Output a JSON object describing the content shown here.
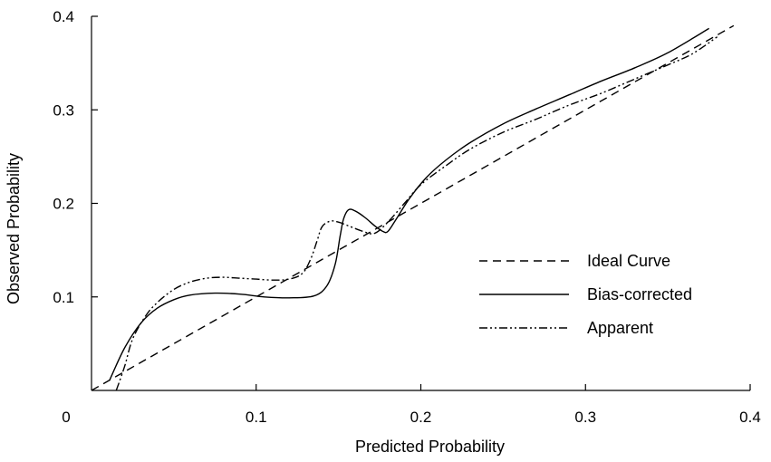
{
  "chart_data": {
    "type": "line",
    "title": "",
    "xlabel": "Predicted  Probability",
    "ylabel": "Observed  Probability",
    "xlim": [
      0,
      0.4
    ],
    "ylim": [
      0,
      0.4
    ],
    "x_ticks": [
      "0",
      "0.1",
      "0.2",
      "0.3",
      "0.4"
    ],
    "y_ticks": [
      "0.1",
      "0.2",
      "0.3",
      "0.4"
    ],
    "x_tick_values": [
      0,
      0.1,
      0.2,
      0.3,
      0.4
    ],
    "y_tick_values": [
      0.1,
      0.2,
      0.3,
      0.4
    ],
    "grid": false,
    "legend_position": "center-right",
    "series": [
      {
        "name": "Ideal Curve",
        "style": "dashed",
        "color": "#000000",
        "points": [
          [
            0,
            0
          ],
          [
            0.39,
            0.39
          ]
        ]
      },
      {
        "name": "Bias-corrected",
        "style": "solid",
        "color": "#000000",
        "points": [
          [
            0.011,
            0.011
          ],
          [
            0.02,
            0.045
          ],
          [
            0.03,
            0.072
          ],
          [
            0.04,
            0.088
          ],
          [
            0.05,
            0.097
          ],
          [
            0.06,
            0.102
          ],
          [
            0.075,
            0.104
          ],
          [
            0.09,
            0.103
          ],
          [
            0.105,
            0.1
          ],
          [
            0.12,
            0.099
          ],
          [
            0.135,
            0.101
          ],
          [
            0.143,
            0.112
          ],
          [
            0.148,
            0.135
          ],
          [
            0.151,
            0.165
          ],
          [
            0.153,
            0.183
          ],
          [
            0.156,
            0.193
          ],
          [
            0.16,
            0.192
          ],
          [
            0.166,
            0.185
          ],
          [
            0.172,
            0.176
          ],
          [
            0.177,
            0.17
          ],
          [
            0.18,
            0.17
          ],
          [
            0.185,
            0.183
          ],
          [
            0.193,
            0.205
          ],
          [
            0.203,
            0.227
          ],
          [
            0.215,
            0.246
          ],
          [
            0.23,
            0.265
          ],
          [
            0.25,
            0.285
          ],
          [
            0.27,
            0.301
          ],
          [
            0.29,
            0.316
          ],
          [
            0.31,
            0.331
          ],
          [
            0.33,
            0.345
          ],
          [
            0.35,
            0.361
          ],
          [
            0.375,
            0.387
          ]
        ]
      },
      {
        "name": "Apparent",
        "style": "dashdotdot",
        "color": "#000000",
        "points": [
          [
            0.015,
            0.0
          ],
          [
            0.02,
            0.025
          ],
          [
            0.025,
            0.055
          ],
          [
            0.033,
            0.08
          ],
          [
            0.04,
            0.094
          ],
          [
            0.05,
            0.108
          ],
          [
            0.06,
            0.116
          ],
          [
            0.07,
            0.12
          ],
          [
            0.08,
            0.121
          ],
          [
            0.09,
            0.12
          ],
          [
            0.1,
            0.119
          ],
          [
            0.11,
            0.118
          ],
          [
            0.12,
            0.119
          ],
          [
            0.128,
            0.125
          ],
          [
            0.133,
            0.14
          ],
          [
            0.137,
            0.16
          ],
          [
            0.14,
            0.175
          ],
          [
            0.145,
            0.181
          ],
          [
            0.15,
            0.18
          ],
          [
            0.156,
            0.176
          ],
          [
            0.165,
            0.17
          ],
          [
            0.172,
            0.168
          ],
          [
            0.18,
            0.18
          ],
          [
            0.19,
            0.2
          ],
          [
            0.2,
            0.22
          ],
          [
            0.215,
            0.24
          ],
          [
            0.23,
            0.258
          ],
          [
            0.25,
            0.276
          ],
          [
            0.27,
            0.29
          ],
          [
            0.29,
            0.305
          ],
          [
            0.31,
            0.318
          ],
          [
            0.33,
            0.333
          ],
          [
            0.35,
            0.348
          ],
          [
            0.365,
            0.36
          ],
          [
            0.38,
            0.378
          ]
        ]
      }
    ]
  }
}
